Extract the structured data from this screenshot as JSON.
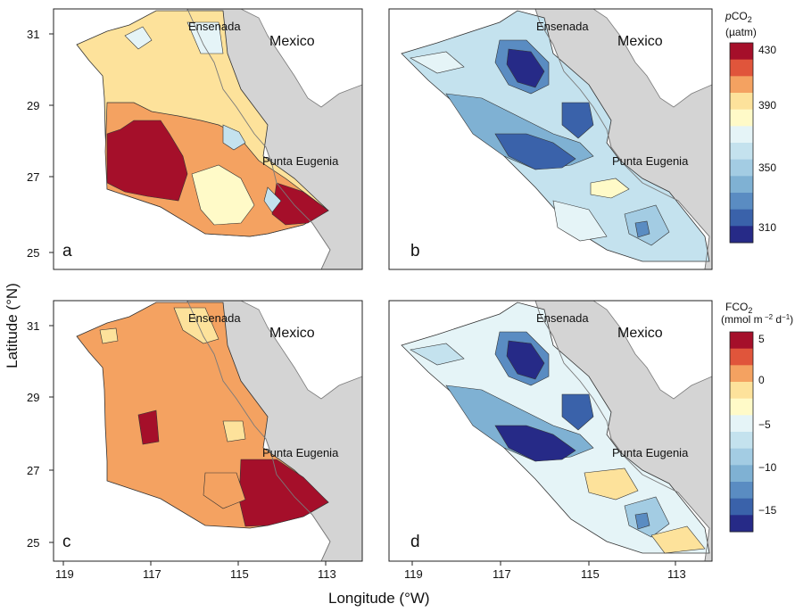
{
  "axes": {
    "x_label": "Longitude (°W)",
    "y_label": "Latitude (°N)",
    "x_ticks": [
      "119",
      "117",
      "115",
      "113"
    ],
    "y_ticks": [
      "31",
      "29",
      "27",
      "25"
    ]
  },
  "places": {
    "ensenada": "Ensenada",
    "mexico": "Mexico",
    "punta_eugenia": "Punta Eugenia"
  },
  "panels": {
    "a": "a",
    "b": "b",
    "c": "c",
    "d": "d"
  },
  "colorbars": {
    "pco2": {
      "title_italic": "p",
      "title_main": "CO",
      "title_sub": "2",
      "unit": "(µatm)",
      "ticks": [
        "430",
        "390",
        "350",
        "310"
      ]
    },
    "fco2": {
      "title_main": "FCO",
      "title_sub": "2",
      "unit_pre": "(mmol m",
      "unit_sup1": " −2",
      "unit_mid": " d",
      "unit_sup2": "−1",
      "unit_post": ")",
      "ticks": [
        "5",
        "0",
        "−5",
        "−10",
        "−15"
      ]
    }
  },
  "colors": {
    "land": "#d4d4d4",
    "land_edge": "#7a7a7a",
    "levels": [
      "#a50f2a",
      "#e0553b",
      "#f4a261",
      "#fde29b",
      "#fffac8",
      "#e5f4f7",
      "#c4e2ee",
      "#a3cce3",
      "#7fb1d3",
      "#5a8cc2",
      "#3a62aa",
      "#262a87"
    ]
  }
}
